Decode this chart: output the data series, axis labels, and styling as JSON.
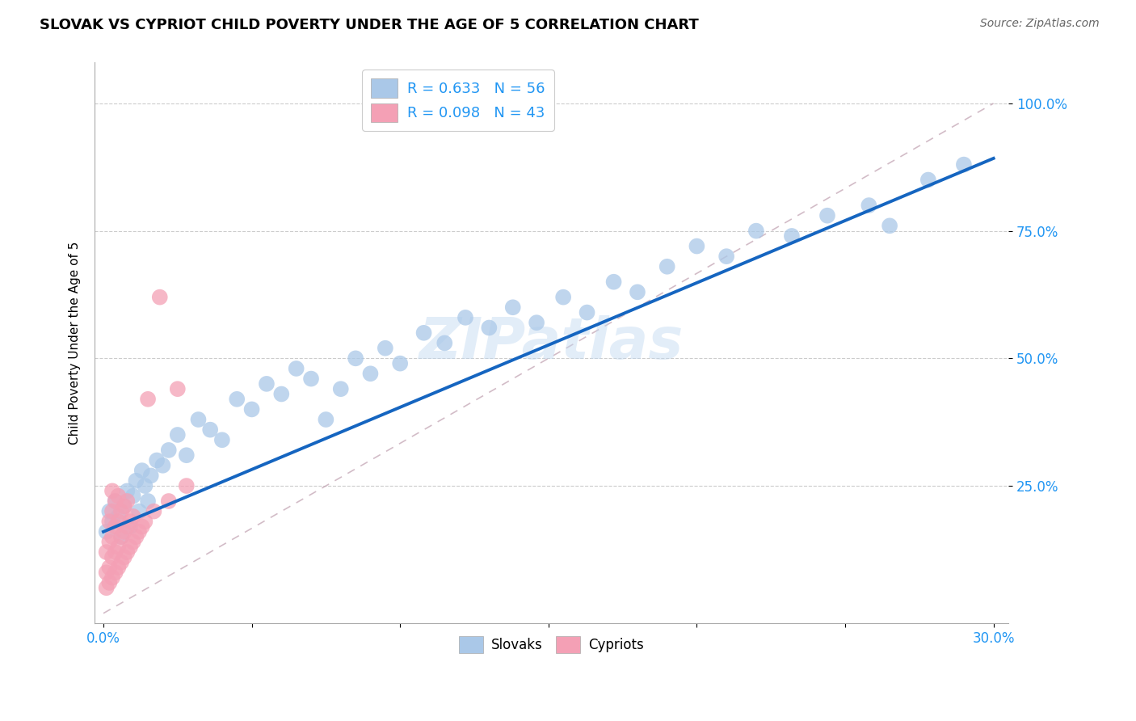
{
  "title": "SLOVAK VS CYPRIOT CHILD POVERTY UNDER THE AGE OF 5 CORRELATION CHART",
  "source": "Source: ZipAtlas.com",
  "ylabel": "Child Poverty Under the Age of 5",
  "xlim": [
    -0.003,
    0.305
  ],
  "ylim": [
    -0.02,
    1.08
  ],
  "xtick_vals": [
    0.0,
    0.05,
    0.1,
    0.15,
    0.2,
    0.25,
    0.3
  ],
  "xtick_labels": [
    "0.0%",
    "",
    "",
    "",
    "",
    "",
    "30.0%"
  ],
  "ytick_vals": [
    0.25,
    0.5,
    0.75,
    1.0
  ],
  "ytick_labels": [
    "25.0%",
    "50.0%",
    "75.0%",
    "100.0%"
  ],
  "slovak_color": "#aac8e8",
  "cypriot_color": "#f4a0b5",
  "reg_slovak_color": "#1565c0",
  "ref_line_color": "#c8a0a8",
  "watermark": "ZIPatlas",
  "grid_color": "#cccccc",
  "tick_color": "#2196f3",
  "n_slovak": 56,
  "n_cypriot": 43,
  "r_slovak": "0.633",
  "r_cypriot": "0.098",
  "slovak_x": [
    0.001,
    0.002,
    0.003,
    0.004,
    0.005,
    0.006,
    0.007,
    0.008,
    0.009,
    0.01,
    0.011,
    0.012,
    0.013,
    0.014,
    0.015,
    0.016,
    0.018,
    0.02,
    0.022,
    0.025,
    0.028,
    0.032,
    0.036,
    0.04,
    0.045,
    0.05,
    0.055,
    0.06,
    0.065,
    0.07,
    0.075,
    0.08,
    0.085,
    0.09,
    0.095,
    0.1,
    0.108,
    0.115,
    0.122,
    0.13,
    0.138,
    0.146,
    0.155,
    0.163,
    0.172,
    0.18,
    0.19,
    0.2,
    0.21,
    0.22,
    0.232,
    0.244,
    0.258,
    0.265,
    0.278,
    0.29
  ],
  "slovak_y": [
    0.16,
    0.2,
    0.18,
    0.22,
    0.19,
    0.15,
    0.21,
    0.24,
    0.17,
    0.23,
    0.26,
    0.2,
    0.28,
    0.25,
    0.22,
    0.27,
    0.3,
    0.29,
    0.32,
    0.35,
    0.31,
    0.38,
    0.36,
    0.34,
    0.42,
    0.4,
    0.45,
    0.43,
    0.48,
    0.46,
    0.38,
    0.44,
    0.5,
    0.47,
    0.52,
    0.49,
    0.55,
    0.53,
    0.58,
    0.56,
    0.6,
    0.57,
    0.62,
    0.59,
    0.65,
    0.63,
    0.68,
    0.72,
    0.7,
    0.75,
    0.74,
    0.78,
    0.8,
    0.76,
    0.85,
    0.88
  ],
  "cypriot_x": [
    0.001,
    0.001,
    0.001,
    0.002,
    0.002,
    0.002,
    0.002,
    0.003,
    0.003,
    0.003,
    0.003,
    0.003,
    0.004,
    0.004,
    0.004,
    0.004,
    0.005,
    0.005,
    0.005,
    0.005,
    0.006,
    0.006,
    0.006,
    0.007,
    0.007,
    0.007,
    0.008,
    0.008,
    0.008,
    0.009,
    0.009,
    0.01,
    0.01,
    0.011,
    0.012,
    0.013,
    0.014,
    0.015,
    0.017,
    0.019,
    0.022,
    0.025,
    0.028
  ],
  "cypriot_y": [
    0.05,
    0.08,
    0.12,
    0.06,
    0.09,
    0.14,
    0.18,
    0.07,
    0.11,
    0.15,
    0.2,
    0.24,
    0.08,
    0.12,
    0.17,
    0.22,
    0.09,
    0.13,
    0.18,
    0.23,
    0.1,
    0.15,
    0.2,
    0.11,
    0.16,
    0.21,
    0.12,
    0.17,
    0.22,
    0.13,
    0.18,
    0.14,
    0.19,
    0.15,
    0.16,
    0.17,
    0.18,
    0.42,
    0.2,
    0.62,
    0.22,
    0.44,
    0.25
  ],
  "ref_line_x": [
    0.0,
    0.3
  ],
  "ref_line_y": [
    0.0,
    1.0
  ]
}
